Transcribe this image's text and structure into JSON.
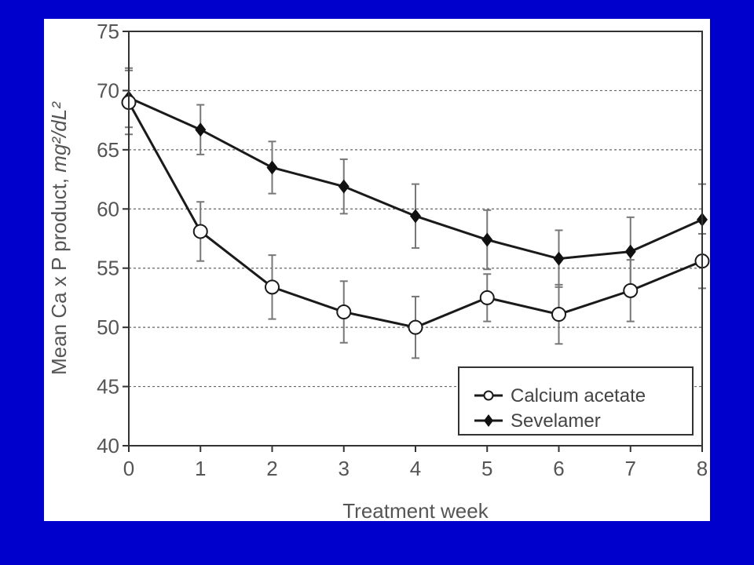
{
  "chart_data": {
    "type": "line",
    "xlabel": "Treatment week",
    "ylabel_main": "Mean Ca x P product, ",
    "ylabel_unit": "mg²/dL²",
    "x": [
      0,
      1,
      2,
      3,
      4,
      5,
      6,
      7,
      8
    ],
    "xticks": [
      "0",
      "1",
      "2",
      "3",
      "4",
      "5",
      "6",
      "7",
      "8"
    ],
    "yticks": [
      "40",
      "45",
      "50",
      "55",
      "60",
      "65",
      "70",
      "75"
    ],
    "xlim": [
      0,
      8
    ],
    "ylim": [
      40,
      75
    ],
    "grid": "horizontal-dotted",
    "legend_position": "bottom-right",
    "series": [
      {
        "name": "Calcium acetate",
        "marker": "open-circle",
        "values": [
          69.0,
          58.1,
          53.4,
          51.3,
          50.0,
          52.5,
          51.1,
          53.1,
          55.6
        ],
        "err": [
          2.7,
          2.5,
          2.7,
          2.6,
          2.6,
          2.0,
          2.5,
          2.6,
          2.3
        ]
      },
      {
        "name": "Sevelamer",
        "marker": "filled-diamond",
        "values": [
          69.4,
          66.7,
          63.5,
          61.9,
          59.4,
          57.4,
          55.8,
          56.4,
          59.1
        ],
        "err": [
          2.5,
          2.1,
          2.2,
          2.3,
          2.7,
          2.5,
          2.4,
          2.9,
          3.0
        ]
      }
    ]
  }
}
